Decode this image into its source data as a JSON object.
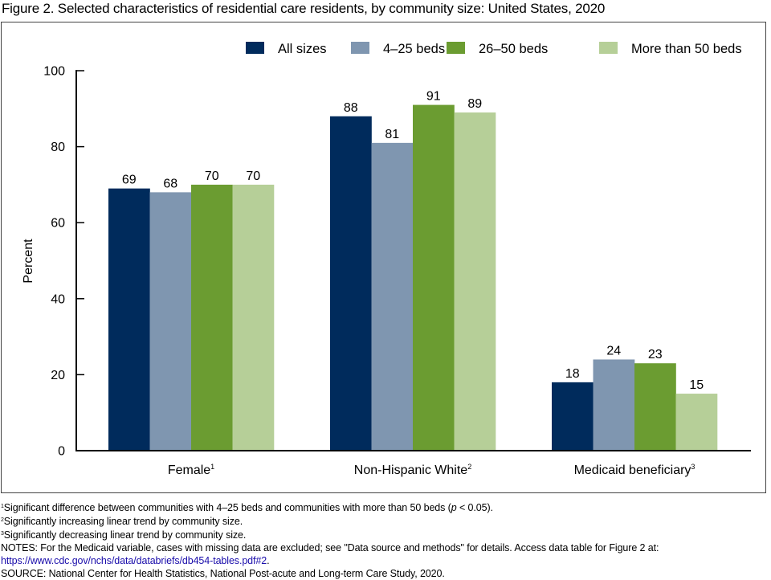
{
  "title": "Figure 2. Selected characteristics of residential care residents, by community size: United States, 2020",
  "chart_data": {
    "type": "bar",
    "title": "Figure 2. Selected characteristics of residential care residents, by community size: United States, 2020",
    "xlabel": "",
    "ylabel": "Percent",
    "ylim": [
      0,
      100
    ],
    "yticks": [
      0,
      20,
      40,
      60,
      80,
      100
    ],
    "grid": false,
    "legend_position": "top-right",
    "categories": [
      "Female",
      "Non-Hispanic White",
      "Medicaid beneficiary"
    ],
    "category_footnotes": [
      "1",
      "2",
      "3"
    ],
    "series": [
      {
        "name": "All sizes",
        "color": "#002b5c",
        "values": [
          69,
          88,
          18
        ]
      },
      {
        "name": "4–25 beds",
        "color": "#7f96b0",
        "values": [
          68,
          81,
          24
        ]
      },
      {
        "name": "26–50 beds",
        "color": "#6b9c31",
        "values": [
          70,
          91,
          23
        ]
      },
      {
        "name": "More than 50 beds",
        "color": "#b6cf98",
        "values": [
          70,
          89,
          15
        ]
      }
    ]
  },
  "footnotes": [
    {
      "mark": "1",
      "text": "Significant difference between communities with 4–25 beds and communities with more than 50 beds (",
      "italic": "p",
      "text_after": " < 0.05)."
    },
    {
      "mark": "2",
      "text": "Significantly increasing linear trend by community size."
    },
    {
      "mark": "3",
      "text": "Significantly decreasing linear trend by community size."
    }
  ],
  "notes": "NOTES: For the Medicaid variable, cases with missing data are excluded; see \"Data source and methods\" for details. Access data table for Figure 2 at:",
  "link": "https://www.cdc.gov/nchs/data/databriefs/db454-tables.pdf#2",
  "link_suffix": ".",
  "source": "SOURCE: National Center for Health Statistics, National Post-acute and Long-term Care Study, 2020."
}
